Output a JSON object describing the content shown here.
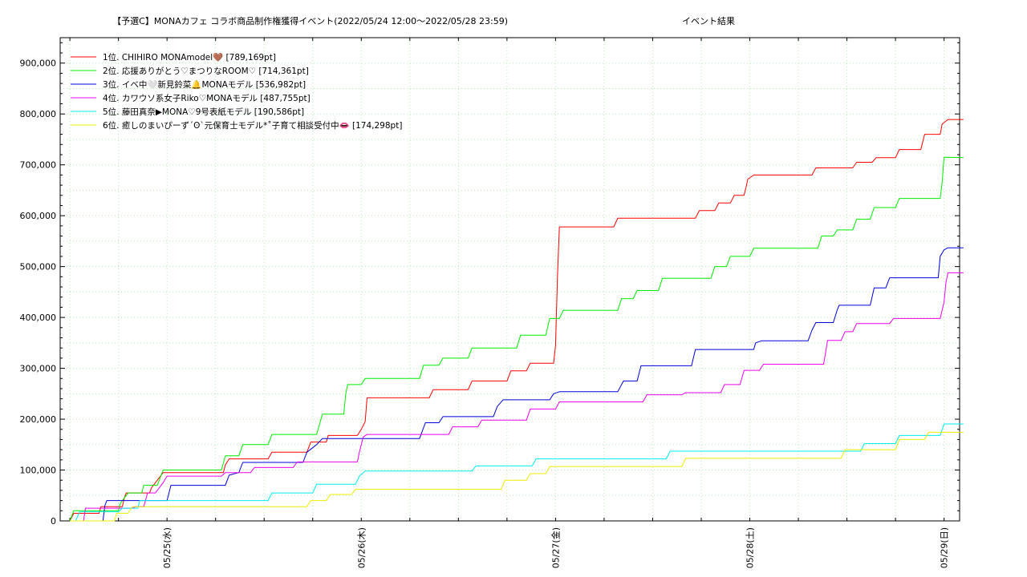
{
  "chart_data": {
    "type": "line",
    "title": "【予選C】MONAカフェ コラボ商品制作権獲得イベント(2022/05/24 12:00〜2022/05/28 23:59)",
    "subtitle": "イベント結果",
    "xlabel": "",
    "ylabel": "",
    "x_unit": "days since 2022/05/24 12:00",
    "xlim": [
      -0.05,
      4.58
    ],
    "ylim": [
      0,
      950000
    ],
    "x_ticks": [
      0.5,
      1.5,
      2.5,
      3.5,
      4.5
    ],
    "x_tick_labels": [
      "05/25(水)",
      "05/26(木)",
      "05/27(金)",
      "05/28(土)",
      "05/29(日)"
    ],
    "y_ticks": [
      0,
      100000,
      200000,
      300000,
      400000,
      500000,
      600000,
      700000,
      800000,
      900000
    ],
    "y_tick_labels": [
      "0",
      "100,000",
      "200,000",
      "300,000",
      "400,000",
      "500,000",
      "600,000",
      "700,000",
      "800,000",
      "900,000"
    ],
    "grid": true,
    "legend_position": "top-left",
    "series": [
      {
        "name": "1位. CHIHIRO MONAmodel🤎 [789,169pt]",
        "color": "#ff0000",
        "points": [
          [
            0.0,
            0
          ],
          [
            0.02,
            15000
          ],
          [
            0.15,
            15000
          ],
          [
            0.16,
            28000
          ],
          [
            0.27,
            28000
          ],
          [
            0.28,
            45000
          ],
          [
            0.29,
            55000
          ],
          [
            0.41,
            55000
          ],
          [
            0.42,
            65000
          ],
          [
            0.45,
            80000
          ],
          [
            0.48,
            95000
          ],
          [
            0.79,
            95000
          ],
          [
            0.8,
            110000
          ],
          [
            0.82,
            122000
          ],
          [
            1.02,
            122000
          ],
          [
            1.04,
            135000
          ],
          [
            1.22,
            135000
          ],
          [
            1.24,
            155000
          ],
          [
            1.32,
            155000
          ],
          [
            1.33,
            168000
          ],
          [
            1.48,
            168000
          ],
          [
            1.5,
            180000
          ],
          [
            1.52,
            195000
          ],
          [
            1.53,
            242000
          ],
          [
            1.85,
            242000
          ],
          [
            1.87,
            258000
          ],
          [
            2.05,
            258000
          ],
          [
            2.07,
            275000
          ],
          [
            2.25,
            275000
          ],
          [
            2.27,
            295000
          ],
          [
            2.35,
            295000
          ],
          [
            2.37,
            310000
          ],
          [
            2.49,
            310000
          ],
          [
            2.5,
            345000
          ],
          [
            2.51,
            480000
          ],
          [
            2.52,
            578000
          ],
          [
            2.8,
            578000
          ],
          [
            2.82,
            595000
          ],
          [
            3.22,
            595000
          ],
          [
            3.24,
            610000
          ],
          [
            3.32,
            610000
          ],
          [
            3.34,
            625000
          ],
          [
            3.4,
            625000
          ],
          [
            3.42,
            640000
          ],
          [
            3.47,
            640000
          ],
          [
            3.48,
            655000
          ],
          [
            3.49,
            672000
          ],
          [
            3.52,
            680000
          ],
          [
            3.82,
            680000
          ],
          [
            3.84,
            694000
          ],
          [
            4.03,
            694000
          ],
          [
            4.05,
            705000
          ],
          [
            4.13,
            705000
          ],
          [
            4.15,
            714000
          ],
          [
            4.25,
            714000
          ],
          [
            4.27,
            730000
          ],
          [
            4.38,
            730000
          ],
          [
            4.4,
            760000
          ],
          [
            4.48,
            760000
          ],
          [
            4.49,
            780000
          ],
          [
            4.52,
            789169
          ],
          [
            4.6,
            789169
          ]
        ]
      },
      {
        "name": "2位. 応援ありがとう♡まつりなROOM♡ [714,361pt]",
        "color": "#00ee00",
        "points": [
          [
            0.0,
            0
          ],
          [
            0.02,
            20000
          ],
          [
            0.25,
            20000
          ],
          [
            0.26,
            35000
          ],
          [
            0.3,
            55000
          ],
          [
            0.37,
            55000
          ],
          [
            0.38,
            70000
          ],
          [
            0.45,
            70000
          ],
          [
            0.48,
            100000
          ],
          [
            0.78,
            100000
          ],
          [
            0.8,
            128000
          ],
          [
            0.87,
            128000
          ],
          [
            0.89,
            150000
          ],
          [
            1.02,
            150000
          ],
          [
            1.04,
            170000
          ],
          [
            1.27,
            170000
          ],
          [
            1.3,
            210000
          ],
          [
            1.41,
            210000
          ],
          [
            1.42,
            250000
          ],
          [
            1.43,
            268000
          ],
          [
            1.5,
            268000
          ],
          [
            1.52,
            280000
          ],
          [
            1.8,
            280000
          ],
          [
            1.82,
            306000
          ],
          [
            1.9,
            306000
          ],
          [
            1.92,
            320000
          ],
          [
            2.05,
            320000
          ],
          [
            2.07,
            340000
          ],
          [
            2.3,
            340000
          ],
          [
            2.32,
            365000
          ],
          [
            2.45,
            365000
          ],
          [
            2.47,
            398000
          ],
          [
            2.52,
            398000
          ],
          [
            2.54,
            414000
          ],
          [
            2.82,
            414000
          ],
          [
            2.84,
            437000
          ],
          [
            2.9,
            437000
          ],
          [
            2.92,
            453000
          ],
          [
            3.03,
            453000
          ],
          [
            3.05,
            477000
          ],
          [
            3.3,
            477000
          ],
          [
            3.32,
            500000
          ],
          [
            3.38,
            500000
          ],
          [
            3.4,
            520000
          ],
          [
            3.5,
            520000
          ],
          [
            3.52,
            536000
          ],
          [
            3.85,
            536000
          ],
          [
            3.87,
            560000
          ],
          [
            3.93,
            560000
          ],
          [
            3.95,
            572000
          ],
          [
            4.03,
            572000
          ],
          [
            4.05,
            593000
          ],
          [
            4.12,
            593000
          ],
          [
            4.14,
            616000
          ],
          [
            4.25,
            616000
          ],
          [
            4.27,
            634000
          ],
          [
            4.48,
            634000
          ],
          [
            4.49,
            665000
          ],
          [
            4.5,
            715000
          ],
          [
            4.6,
            714361
          ]
        ]
      },
      {
        "name": "3位. イベ中🤍新見鈴菜🔔MONAモデル [536,982pt]",
        "color": "#0000dd",
        "points": [
          [
            0.0,
            0
          ],
          [
            0.17,
            0
          ],
          [
            0.18,
            30000
          ],
          [
            0.19,
            40000
          ],
          [
            0.5,
            40000
          ],
          [
            0.52,
            70000
          ],
          [
            0.8,
            70000
          ],
          [
            0.82,
            90000
          ],
          [
            0.87,
            95000
          ],
          [
            0.89,
            115000
          ],
          [
            1.2,
            115000
          ],
          [
            1.22,
            135000
          ],
          [
            1.27,
            150000
          ],
          [
            1.3,
            162000
          ],
          [
            1.8,
            162000
          ],
          [
            1.83,
            193000
          ],
          [
            1.9,
            193000
          ],
          [
            1.92,
            205000
          ],
          [
            2.18,
            205000
          ],
          [
            2.2,
            225000
          ],
          [
            2.23,
            238000
          ],
          [
            2.47,
            238000
          ],
          [
            2.49,
            250000
          ],
          [
            2.52,
            254000
          ],
          [
            2.82,
            254000
          ],
          [
            2.85,
            275000
          ],
          [
            2.92,
            275000
          ],
          [
            2.94,
            305000
          ],
          [
            3.2,
            305000
          ],
          [
            3.22,
            337000
          ],
          [
            3.52,
            337000
          ],
          [
            3.53,
            350000
          ],
          [
            3.56,
            354000
          ],
          [
            3.8,
            354000
          ],
          [
            3.82,
            375000
          ],
          [
            3.84,
            390000
          ],
          [
            3.93,
            390000
          ],
          [
            3.95,
            415000
          ],
          [
            3.96,
            424000
          ],
          [
            4.12,
            424000
          ],
          [
            4.14,
            458000
          ],
          [
            4.2,
            458000
          ],
          [
            4.22,
            478000
          ],
          [
            4.47,
            478000
          ],
          [
            4.48,
            520000
          ],
          [
            4.5,
            533000
          ],
          [
            4.52,
            536982
          ],
          [
            4.6,
            536982
          ]
        ]
      },
      {
        "name": "4位. カワウソ系女子Riko♡MONAモデル [487,755pt]",
        "color": "#ee00ee",
        "points": [
          [
            0.0,
            0
          ],
          [
            0.07,
            0
          ],
          [
            0.08,
            25000
          ],
          [
            0.32,
            25000
          ],
          [
            0.34,
            28000
          ],
          [
            0.38,
            28000
          ],
          [
            0.4,
            55000
          ],
          [
            0.44,
            55000
          ],
          [
            0.46,
            65000
          ],
          [
            0.48,
            75000
          ],
          [
            0.5,
            88000
          ],
          [
            0.78,
            88000
          ],
          [
            0.8,
            95000
          ],
          [
            0.93,
            95000
          ],
          [
            0.95,
            105000
          ],
          [
            1.15,
            105000
          ],
          [
            1.17,
            116000
          ],
          [
            1.48,
            116000
          ],
          [
            1.49,
            135000
          ],
          [
            1.51,
            165000
          ],
          [
            1.53,
            170000
          ],
          [
            1.95,
            170000
          ],
          [
            1.97,
            185000
          ],
          [
            2.1,
            185000
          ],
          [
            2.12,
            198000
          ],
          [
            2.35,
            198000
          ],
          [
            2.37,
            220000
          ],
          [
            2.5,
            220000
          ],
          [
            2.52,
            234000
          ],
          [
            2.95,
            234000
          ],
          [
            2.97,
            248000
          ],
          [
            3.15,
            248000
          ],
          [
            3.17,
            252000
          ],
          [
            3.35,
            252000
          ],
          [
            3.37,
            268000
          ],
          [
            3.45,
            268000
          ],
          [
            3.47,
            296000
          ],
          [
            3.55,
            296000
          ],
          [
            3.57,
            308000
          ],
          [
            3.88,
            308000
          ],
          [
            3.89,
            330000
          ],
          [
            3.9,
            355000
          ],
          [
            3.97,
            355000
          ],
          [
            3.99,
            372000
          ],
          [
            4.03,
            372000
          ],
          [
            4.05,
            388000
          ],
          [
            4.22,
            388000
          ],
          [
            4.24,
            398000
          ],
          [
            4.48,
            398000
          ],
          [
            4.5,
            430000
          ],
          [
            4.51,
            470000
          ],
          [
            4.52,
            487755
          ],
          [
            4.6,
            487755
          ]
        ]
      },
      {
        "name": "5位. 藤田真奈▶MONA♡9号表紙モデル [190,586pt]",
        "color": "#00eeee",
        "points": [
          [
            0.0,
            0
          ],
          [
            0.03,
            0
          ],
          [
            0.05,
            18000
          ],
          [
            0.25,
            18000
          ],
          [
            0.27,
            25000
          ],
          [
            0.35,
            25000
          ],
          [
            0.36,
            40000
          ],
          [
            1.02,
            40000
          ],
          [
            1.04,
            55000
          ],
          [
            1.25,
            55000
          ],
          [
            1.27,
            72000
          ],
          [
            1.47,
            72000
          ],
          [
            1.49,
            88000
          ],
          [
            1.52,
            98000
          ],
          [
            2.07,
            98000
          ],
          [
            2.09,
            108000
          ],
          [
            2.38,
            108000
          ],
          [
            2.4,
            122000
          ],
          [
            3.07,
            122000
          ],
          [
            3.09,
            137000
          ],
          [
            4.07,
            137000
          ],
          [
            4.09,
            152000
          ],
          [
            4.25,
            152000
          ],
          [
            4.27,
            168000
          ],
          [
            4.48,
            168000
          ],
          [
            4.5,
            190586
          ],
          [
            4.6,
            190586
          ]
        ]
      },
      {
        "name": "6位. 癒しのまいぴーず´ʘ`元保育士モデル*˚子育て相談受付中👄 [174,298pt]",
        "color": "#eeee00",
        "points": [
          [
            0.0,
            0
          ],
          [
            0.23,
            0
          ],
          [
            0.24,
            15000
          ],
          [
            0.3,
            15000
          ],
          [
            0.32,
            28000
          ],
          [
            1.22,
            28000
          ],
          [
            1.24,
            40000
          ],
          [
            1.32,
            40000
          ],
          [
            1.34,
            52000
          ],
          [
            1.45,
            52000
          ],
          [
            1.47,
            62000
          ],
          [
            2.22,
            62000
          ],
          [
            2.24,
            80000
          ],
          [
            2.35,
            80000
          ],
          [
            2.37,
            93000
          ],
          [
            2.45,
            93000
          ],
          [
            2.47,
            107000
          ],
          [
            3.15,
            107000
          ],
          [
            3.17,
            123000
          ],
          [
            3.97,
            123000
          ],
          [
            3.99,
            140000
          ],
          [
            4.25,
            140000
          ],
          [
            4.27,
            160000
          ],
          [
            4.4,
            160000
          ],
          [
            4.42,
            174298
          ],
          [
            4.6,
            174298
          ]
        ]
      }
    ]
  }
}
